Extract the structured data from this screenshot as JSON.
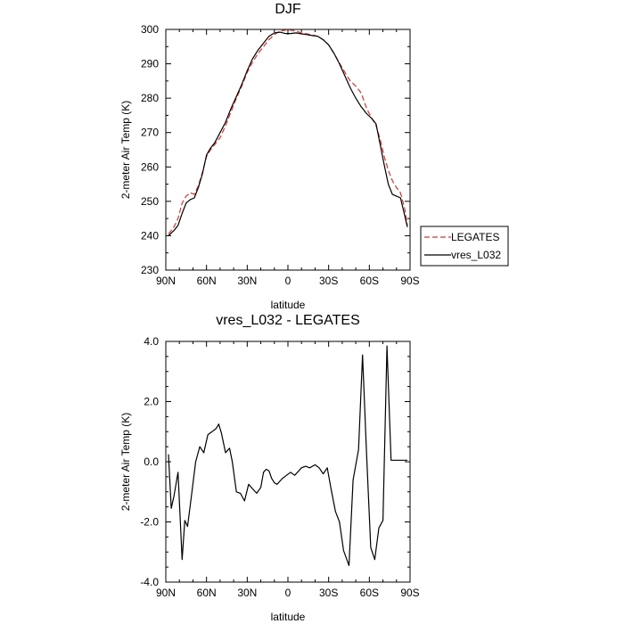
{
  "colors": {
    "model": "#000000",
    "obs": "#e03030",
    "axis": "#000000"
  },
  "chart_data": [
    {
      "type": "line",
      "title": "DJF",
      "xlabel": "latitude",
      "ylabel": "2-meter Air Temp (K)",
      "xlim": [
        90,
        -90
      ],
      "ylim": [
        230,
        300
      ],
      "xticks": [
        90,
        60,
        30,
        0,
        -30,
        -60,
        -90
      ],
      "xtick_labels": [
        "90N",
        "60N",
        "30N",
        "0",
        "30S",
        "60S",
        "90S"
      ],
      "yticks": [
        230,
        240,
        250,
        260,
        270,
        280,
        290,
        300
      ],
      "ytick_labels": [
        "230",
        "240",
        "250",
        "260",
        "270",
        "280",
        "290",
        "300"
      ],
      "legend": {
        "position": "outside-right",
        "entries": [
          "LEGATES",
          "vres_L032"
        ]
      },
      "series": [
        {
          "name": "LEGATES",
          "style": "dashed",
          "color": "#e03030",
          "x": [
            88,
            84,
            81,
            78,
            75,
            72,
            69,
            66,
            63,
            60,
            57,
            54,
            50,
            46,
            42,
            38,
            34,
            30,
            26,
            22,
            18,
            14,
            10,
            6,
            2,
            -2,
            -6,
            -10,
            -14,
            -18,
            -22,
            -26,
            -30,
            -34,
            -38,
            -42,
            -46,
            -50,
            -54,
            -58,
            -62,
            -65,
            -68,
            -71,
            -74,
            -77,
            -80,
            -83,
            -86,
            -88
          ],
          "y": [
            240.5,
            242.5,
            245,
            249.5,
            251.5,
            252.5,
            252,
            254.5,
            258.5,
            263,
            265,
            266.5,
            268.5,
            272,
            276,
            280,
            283.5,
            287.5,
            290.5,
            293,
            295,
            297,
            298.5,
            299.5,
            299.8,
            299.8,
            299.5,
            299,
            298.7,
            298.4,
            298,
            297,
            295.5,
            293,
            290.2,
            287.5,
            285,
            283.5,
            281.5,
            277,
            274,
            272,
            268,
            263,
            259,
            256,
            254,
            252.5,
            248,
            243
          ]
        },
        {
          "name": "vres_L032",
          "style": "solid",
          "color": "#000000",
          "x": [
            88,
            84,
            81,
            78,
            75,
            72,
            69,
            66,
            63,
            60,
            57,
            54,
            50,
            46,
            42,
            38,
            34,
            30,
            26,
            22,
            18,
            14,
            10,
            6,
            2,
            -2,
            -6,
            -10,
            -14,
            -18,
            -22,
            -26,
            -30,
            -34,
            -38,
            -42,
            -46,
            -50,
            -54,
            -58,
            -62,
            -65,
            -68,
            -71,
            -74,
            -77,
            -80,
            -83,
            -86,
            -88
          ],
          "y": [
            240,
            241.5,
            243,
            246.5,
            249.5,
            250.5,
            251,
            254,
            258,
            263.5,
            265.5,
            267,
            270,
            273,
            277,
            280.5,
            284,
            288,
            291.5,
            294,
            296,
            298,
            299,
            299.2,
            298.8,
            298.8,
            299,
            298.7,
            298.5,
            298.2,
            298,
            297,
            295.5,
            293,
            290,
            286.5,
            283,
            280,
            277.5,
            275.5,
            274,
            272.5,
            266.5,
            260.5,
            255,
            252,
            251.5,
            251,
            246,
            242.5
          ]
        }
      ]
    },
    {
      "type": "line",
      "title": "vres_L032 - LEGATES",
      "xlabel": "latitude",
      "ylabel": "2-meter Air Temp (K)",
      "xlim": [
        90,
        -90
      ],
      "ylim": [
        -4,
        4
      ],
      "xticks": [
        90,
        60,
        30,
        0,
        -30,
        -60,
        -90
      ],
      "xtick_labels": [
        "90N",
        "60N",
        "30N",
        "0",
        "30S",
        "60S",
        "90S"
      ],
      "yticks": [
        -4,
        -2,
        0,
        2,
        4
      ],
      "ytick_labels": [
        "-4.0",
        "-2.0",
        "0.0",
        "2.0",
        "4.0"
      ],
      "series": [
        {
          "name": "vres_L032 - LEGATES",
          "style": "solid",
          "color": "#000000",
          "x": [
            88,
            86,
            84,
            81,
            78,
            76,
            74,
            71,
            68,
            65,
            62,
            59,
            56,
            53,
            51,
            49,
            46,
            43,
            41,
            38,
            35,
            32,
            29,
            26,
            23,
            20,
            18,
            16,
            14,
            12,
            10,
            8,
            6,
            4,
            1,
            -2,
            -5,
            -8,
            -10,
            -13,
            -16,
            -18,
            -20,
            -23,
            -26,
            -29,
            -32,
            -35,
            -38,
            -41,
            -45,
            -48,
            -52,
            -55,
            -58,
            -61,
            -64,
            -67,
            -70,
            -73,
            -76,
            -78,
            -81,
            -84,
            -86,
            -88
          ],
          "y": [
            0.25,
            -1.55,
            -1.15,
            -0.35,
            -3.25,
            -1.95,
            -2.15,
            -1.1,
            0.0,
            0.5,
            0.3,
            0.9,
            1.0,
            1.1,
            1.25,
            0.95,
            0.3,
            0.45,
            0.0,
            -1.0,
            -1.05,
            -1.3,
            -0.75,
            -0.9,
            -1.05,
            -0.85,
            -0.35,
            -0.25,
            -0.3,
            -0.55,
            -0.7,
            -0.75,
            -0.65,
            -0.55,
            -0.45,
            -0.35,
            -0.45,
            -0.3,
            -0.2,
            -0.15,
            -0.2,
            -0.15,
            -0.1,
            -0.2,
            -0.4,
            -0.2,
            -0.95,
            -1.65,
            -2.0,
            -2.95,
            -3.45,
            -0.6,
            0.4,
            3.55,
            0.2,
            -2.85,
            -3.25,
            -2.2,
            -1.95,
            3.85,
            0.05,
            0.05,
            0.05,
            0.05,
            0.05,
            0.05
          ]
        }
      ]
    }
  ]
}
